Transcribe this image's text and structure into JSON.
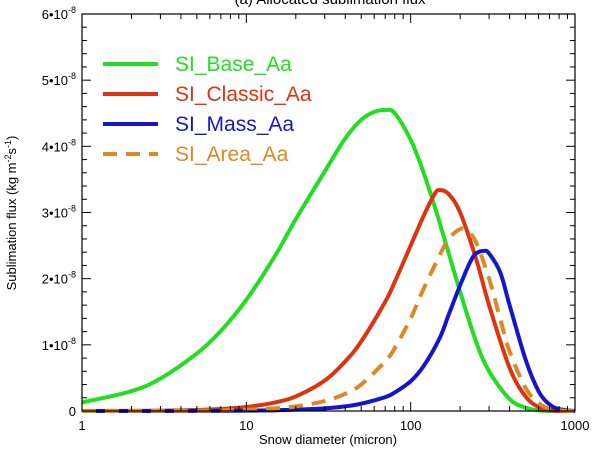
{
  "chart_data": {
    "type": "line",
    "title": "(a) Allocated sublimation flux",
    "xlabel": "Snow diameter (micron)",
    "ylabel": "Sublimation flux (kg m-2s-1)",
    "ylabel_parts": {
      "main": "Sublimation flux (kg m",
      "exp1": "-2",
      "mid": "s",
      "exp2": "-1",
      "end": ")"
    },
    "x_scale": "log",
    "xlim": [
      1,
      1000
    ],
    "ylim": [
      0,
      6e-08
    ],
    "x_ticks": [
      {
        "value": 1,
        "label": "1"
      },
      {
        "value": 10,
        "label": "10"
      },
      {
        "value": 100,
        "label": "100"
      },
      {
        "value": 1000,
        "label": "1000"
      }
    ],
    "y_ticks": [
      {
        "value": 0,
        "label": "0"
      },
      {
        "value": 1e-08,
        "mant": "1•10",
        "exp": "-8"
      },
      {
        "value": 2e-08,
        "mant": "2•10",
        "exp": "-8"
      },
      {
        "value": 3e-08,
        "mant": "3•10",
        "exp": "-8"
      },
      {
        "value": 4e-08,
        "mant": "4•10",
        "exp": "-8"
      },
      {
        "value": 5e-08,
        "mant": "5•10",
        "exp": "-8"
      },
      {
        "value": 6e-08,
        "mant": "6•10",
        "exp": "-8"
      }
    ],
    "grid": false,
    "legend_position": "top-left",
    "series": [
      {
        "name": "SI_Base_Aa",
        "color": "#22dd22",
        "dash": "solid",
        "x": [
          1,
          2,
          3,
          5,
          7,
          10,
          15,
          20,
          30,
          40,
          50,
          60,
          70,
          80,
          100,
          120,
          150,
          200,
          250,
          300,
          400,
          500,
          600,
          700,
          800,
          1000
        ],
        "y": [
          1.3e-09,
          3e-09,
          4.9e-09,
          8.7e-09,
          1.21e-08,
          1.68e-08,
          2.35e-08,
          2.9e-08,
          3.62e-08,
          4.12e-08,
          4.4e-08,
          4.52e-08,
          4.55e-08,
          4.5e-08,
          4.1e-08,
          3.6e-08,
          2.85e-08,
          1.8e-08,
          1.05e-08,
          6e-09,
          1.8e-09,
          5e-10,
          1e-10,
          0,
          0,
          0
        ]
      },
      {
        "name": "SI_Classic_Aa",
        "color": "#dd3311",
        "dash": "solid",
        "x": [
          1,
          2,
          3,
          5,
          7,
          10,
          15,
          20,
          30,
          40,
          50,
          70,
          80,
          100,
          120,
          140,
          150,
          170,
          200,
          250,
          300,
          400,
          500,
          600,
          700,
          800,
          1000
        ],
        "y": [
          0,
          2e-11,
          5e-11,
          1.5e-10,
          3e-10,
          6e-10,
          1.3e-09,
          2.2e-09,
          4.6e-09,
          7.5e-09,
          1.05e-08,
          1.65e-08,
          1.95e-08,
          2.5e-08,
          2.95e-08,
          3.28e-08,
          3.34e-08,
          3.28e-08,
          3e-08,
          2.3e-08,
          1.6e-08,
          6.5e-09,
          2.2e-09,
          6e-10,
          1.5e-10,
          0,
          0
        ]
      },
      {
        "name": "SI_Mass_Aa",
        "color": "#1515cc",
        "dash": "solid",
        "x": [
          1,
          2,
          3,
          5,
          7,
          10,
          15,
          20,
          30,
          40,
          50,
          70,
          80,
          100,
          120,
          150,
          170,
          200,
          230,
          250,
          280,
          300,
          350,
          400,
          500,
          600,
          700,
          800,
          1000
        ],
        "y": [
          0,
          0,
          0,
          1e-11,
          2e-11,
          5e-11,
          1e-10,
          2e-10,
          4e-10,
          7e-10,
          1.1e-09,
          2.1e-09,
          2.8e-09,
          4.5e-09,
          6.8e-09,
          1.1e-08,
          1.45e-08,
          1.9e-08,
          2.25e-08,
          2.38e-08,
          2.42e-08,
          2.38e-08,
          2.1e-08,
          1.6e-08,
          7.8e-09,
          3e-09,
          1e-09,
          3e-10,
          0
        ]
      },
      {
        "name": "SI_Area_Aa",
        "color": "#dd8822",
        "dash": "dashed",
        "x": [
          1,
          2,
          3,
          5,
          7,
          10,
          15,
          20,
          30,
          40,
          50,
          70,
          80,
          100,
          120,
          150,
          170,
          200,
          220,
          250,
          300,
          350,
          400,
          500,
          600,
          700,
          800,
          1000
        ],
        "y": [
          0,
          1e-11,
          2e-11,
          5e-11,
          1e-10,
          2e-10,
          4e-10,
          7e-10,
          1.5e-09,
          2.6e-09,
          4e-09,
          7.5e-09,
          9.5e-09,
          1.4e-08,
          1.85e-08,
          2.35e-08,
          2.6e-08,
          2.75e-08,
          2.72e-08,
          2.55e-08,
          2e-08,
          1.4e-08,
          9e-09,
          3.5e-09,
          1.2e-09,
          3e-10,
          1e-10,
          0
        ]
      }
    ]
  }
}
